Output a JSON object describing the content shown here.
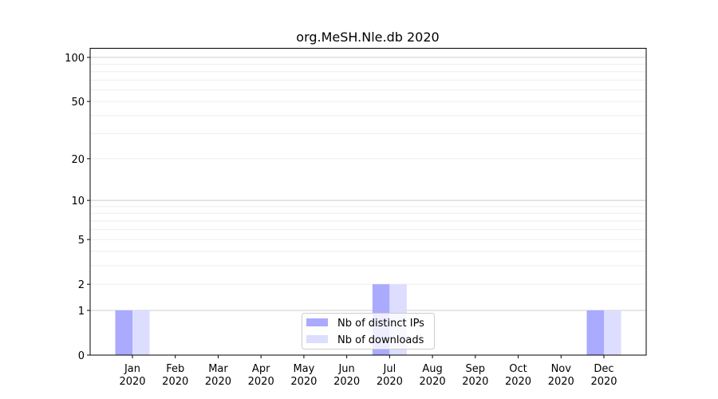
{
  "chart_data": {
    "type": "bar",
    "title": "org.MeSH.Nle.db 2020",
    "xlabel": "",
    "ylabel": "",
    "y_scale": "log(1+x)",
    "ylim": [
      0,
      116
    ],
    "y_ticks": [
      0,
      1,
      2,
      5,
      10,
      20,
      50,
      100
    ],
    "grid": true,
    "legend_placement": "bottom-center",
    "categories": [
      "Jan\n2020",
      "Feb\n2020",
      "Mar\n2020",
      "Apr\n2020",
      "May\n2020",
      "Jun\n2020",
      "Jul\n2020",
      "Aug\n2020",
      "Sep\n2020",
      "Oct\n2020",
      "Nov\n2020",
      "Dec\n2020"
    ],
    "series": [
      {
        "name": "Nb of distinct IPs",
        "color": "#aaaaff",
        "values": [
          1,
          0,
          0,
          0,
          0,
          0,
          2,
          0,
          0,
          0,
          0,
          1
        ]
      },
      {
        "name": "Nb of downloads",
        "color": "#ddddff",
        "values": [
          1,
          0,
          0,
          0,
          0,
          0,
          2,
          0,
          0,
          0,
          0,
          1
        ]
      }
    ]
  }
}
